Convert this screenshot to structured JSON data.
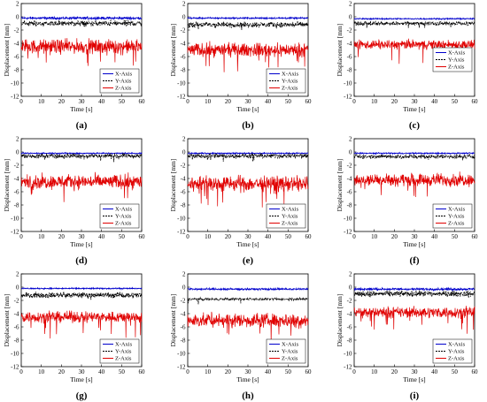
{
  "chart_data": [
    {
      "panel_label": "(a)",
      "type": "line",
      "xlabel": "Time [s]",
      "ylabel": "Displacement [mm]",
      "xlim": [
        0,
        60
      ],
      "ylim": [
        -12,
        2
      ],
      "xticks": [
        "0",
        "10",
        "20",
        "30",
        "40",
        "50",
        "60"
      ],
      "yticks": [
        "2",
        "0",
        "-2",
        "-4",
        "-6",
        "-8",
        "-10",
        "-12"
      ],
      "legend": {
        "position": "bottom-right"
      },
      "amp": [
        0.15,
        0.35,
        0.9
      ],
      "series": [
        {
          "name": "X-Axis",
          "mean": -0.2,
          "color": "#0000cc"
        },
        {
          "name": "Y-Axis",
          "mean": -1.0,
          "color": "#000000"
        },
        {
          "name": "Z-Axis",
          "mean": -4.5,
          "color": "#e00000"
        }
      ]
    },
    {
      "panel_label": "(b)",
      "type": "line",
      "xlabel": "Time [s]",
      "ylabel": "Displacement [mm]",
      "xlim": [
        0,
        60
      ],
      "ylim": [
        -12,
        2
      ],
      "xticks": [
        "0",
        "10",
        "20",
        "30",
        "40",
        "50",
        "60"
      ],
      "yticks": [
        "2",
        "0",
        "-2",
        "-4",
        "-6",
        "-8",
        "-10",
        "-12"
      ],
      "legend": {
        "position": "bottom-right"
      },
      "amp": [
        0.1,
        0.35,
        0.85
      ],
      "series": [
        {
          "name": "X-Axis",
          "mean": -0.2,
          "color": "#0000cc"
        },
        {
          "name": "Y-Axis",
          "mean": -1.2,
          "color": "#000000"
        },
        {
          "name": "Z-Axis",
          "mean": -5.0,
          "color": "#e00000"
        }
      ]
    },
    {
      "panel_label": "(c)",
      "type": "line",
      "xlabel": "Time [s]",
      "ylabel": "Displacement [mm]",
      "xlim": [
        0,
        60
      ],
      "ylim": [
        -12,
        2
      ],
      "xticks": [
        "0",
        "10",
        "20",
        "30",
        "40",
        "50",
        "60"
      ],
      "yticks": [
        "2",
        "0",
        "-2",
        "-4",
        "-6",
        "-8",
        "-10",
        "-12"
      ],
      "legend": {
        "position": "right"
      },
      "amp": [
        0.08,
        0.25,
        0.6
      ],
      "series": [
        {
          "name": "X-Axis",
          "mean": -0.3,
          "color": "#0000cc"
        },
        {
          "name": "Y-Axis",
          "mean": -1.0,
          "color": "#000000"
        },
        {
          "name": "Z-Axis",
          "mean": -4.2,
          "color": "#e00000"
        }
      ]
    },
    {
      "panel_label": "(d)",
      "type": "line",
      "xlabel": "Time [s]",
      "ylabel": "Displacement [mm]",
      "xlim": [
        0,
        60
      ],
      "ylim": [
        -12,
        2
      ],
      "xticks": [
        "0",
        "10",
        "20",
        "30",
        "40",
        "50",
        "60"
      ],
      "yticks": [
        "2",
        "0",
        "-2",
        "-4",
        "-6",
        "-8",
        "-10",
        "-12"
      ],
      "legend": {
        "position": "bottom-right"
      },
      "amp": [
        0.08,
        0.3,
        0.9
      ],
      "series": [
        {
          "name": "X-Axis",
          "mean": -0.2,
          "color": "#0000cc"
        },
        {
          "name": "Y-Axis",
          "mean": -0.6,
          "color": "#000000"
        },
        {
          "name": "Z-Axis",
          "mean": -4.5,
          "color": "#e00000"
        }
      ]
    },
    {
      "panel_label": "(e)",
      "type": "line",
      "xlabel": "Time [s]",
      "ylabel": "Displacement [mm]",
      "xlim": [
        0,
        60
      ],
      "ylim": [
        -12,
        2
      ],
      "xticks": [
        "0",
        "10",
        "20",
        "30",
        "40",
        "50",
        "60"
      ],
      "yticks": [
        "2",
        "0",
        "-2",
        "-4",
        "-6",
        "-8",
        "-10",
        "-12"
      ],
      "legend": {
        "position": "bottom-right"
      },
      "amp": [
        0.08,
        0.3,
        1.0
      ],
      "series": [
        {
          "name": "X-Axis",
          "mean": -0.2,
          "color": "#0000cc"
        },
        {
          "name": "Y-Axis",
          "mean": -0.6,
          "color": "#000000"
        },
        {
          "name": "Z-Axis",
          "mean": -4.8,
          "color": "#e00000"
        }
      ]
    },
    {
      "panel_label": "(f)",
      "type": "line",
      "xlabel": "Time [s]",
      "ylabel": "Displacement [mm]",
      "xlim": [
        0,
        60
      ],
      "ylim": [
        -12,
        2
      ],
      "xticks": [
        "0",
        "10",
        "20",
        "30",
        "40",
        "50",
        "60"
      ],
      "yticks": [
        "2",
        "0",
        "-2",
        "-4",
        "-6",
        "-8",
        "-10",
        "-12"
      ],
      "legend": {
        "position": "bottom-right"
      },
      "amp": [
        0.08,
        0.25,
        0.8
      ],
      "series": [
        {
          "name": "X-Axis",
          "mean": -0.2,
          "color": "#0000cc"
        },
        {
          "name": "Y-Axis",
          "mean": -0.7,
          "color": "#000000"
        },
        {
          "name": "Z-Axis",
          "mean": -4.2,
          "color": "#e00000"
        }
      ]
    },
    {
      "panel_label": "(g)",
      "type": "line",
      "xlabel": "Time [s]",
      "ylabel": "Displacement [mm]",
      "xlim": [
        0,
        60
      ],
      "ylim": [
        -12,
        2
      ],
      "xticks": [
        "0",
        "10",
        "20",
        "30",
        "40",
        "50",
        "60"
      ],
      "yticks": [
        "2",
        "0",
        "-2",
        "-4",
        "-6",
        "-8",
        "-10",
        "-12"
      ],
      "legend": {
        "position": "bottom-right"
      },
      "amp": [
        0.08,
        0.35,
        0.7
      ],
      "series": [
        {
          "name": "X-Axis",
          "mean": -0.2,
          "color": "#0000cc"
        },
        {
          "name": "Y-Axis",
          "mean": -1.2,
          "color": "#000000"
        },
        {
          "name": "Z-Axis",
          "mean": -4.5,
          "color": "#e00000"
        }
      ]
    },
    {
      "panel_label": "(h)",
      "type": "line",
      "xlabel": "Time [s]",
      "ylabel": "Displacement [mm]",
      "xlim": [
        0,
        60
      ],
      "ylim": [
        -12,
        2
      ],
      "xticks": [
        "0",
        "10",
        "20",
        "30",
        "40",
        "50",
        "60"
      ],
      "yticks": [
        "2",
        "0",
        "-2",
        "-4",
        "-6",
        "-8",
        "-10",
        "-12"
      ],
      "legend": {
        "position": "bottom-right"
      },
      "amp": [
        0.12,
        0.15,
        0.9
      ],
      "series": [
        {
          "name": "X-Axis",
          "mean": -0.3,
          "color": "#0000cc"
        },
        {
          "name": "Y-Axis",
          "mean": -1.8,
          "color": "#000000"
        },
        {
          "name": "Z-Axis",
          "mean": -5.0,
          "color": "#e00000"
        }
      ]
    },
    {
      "panel_label": "(i)",
      "type": "line",
      "xlabel": "Time [s]",
      "ylabel": "Displacement [mm]",
      "xlim": [
        0,
        60
      ],
      "ylim": [
        -12,
        2
      ],
      "xticks": [
        "0",
        "10",
        "20",
        "30",
        "40",
        "50",
        "60"
      ],
      "yticks": [
        "2",
        "0",
        "-2",
        "-4",
        "-6",
        "-8",
        "-10",
        "-12"
      ],
      "legend": {
        "position": "bottom-right"
      },
      "amp": [
        0.15,
        0.35,
        0.7
      ],
      "series": [
        {
          "name": "X-Axis",
          "mean": -0.3,
          "color": "#0000cc"
        },
        {
          "name": "Y-Axis",
          "mean": -1.0,
          "color": "#000000"
        },
        {
          "name": "Z-Axis",
          "mean": -3.8,
          "color": "#e00000"
        }
      ]
    }
  ]
}
